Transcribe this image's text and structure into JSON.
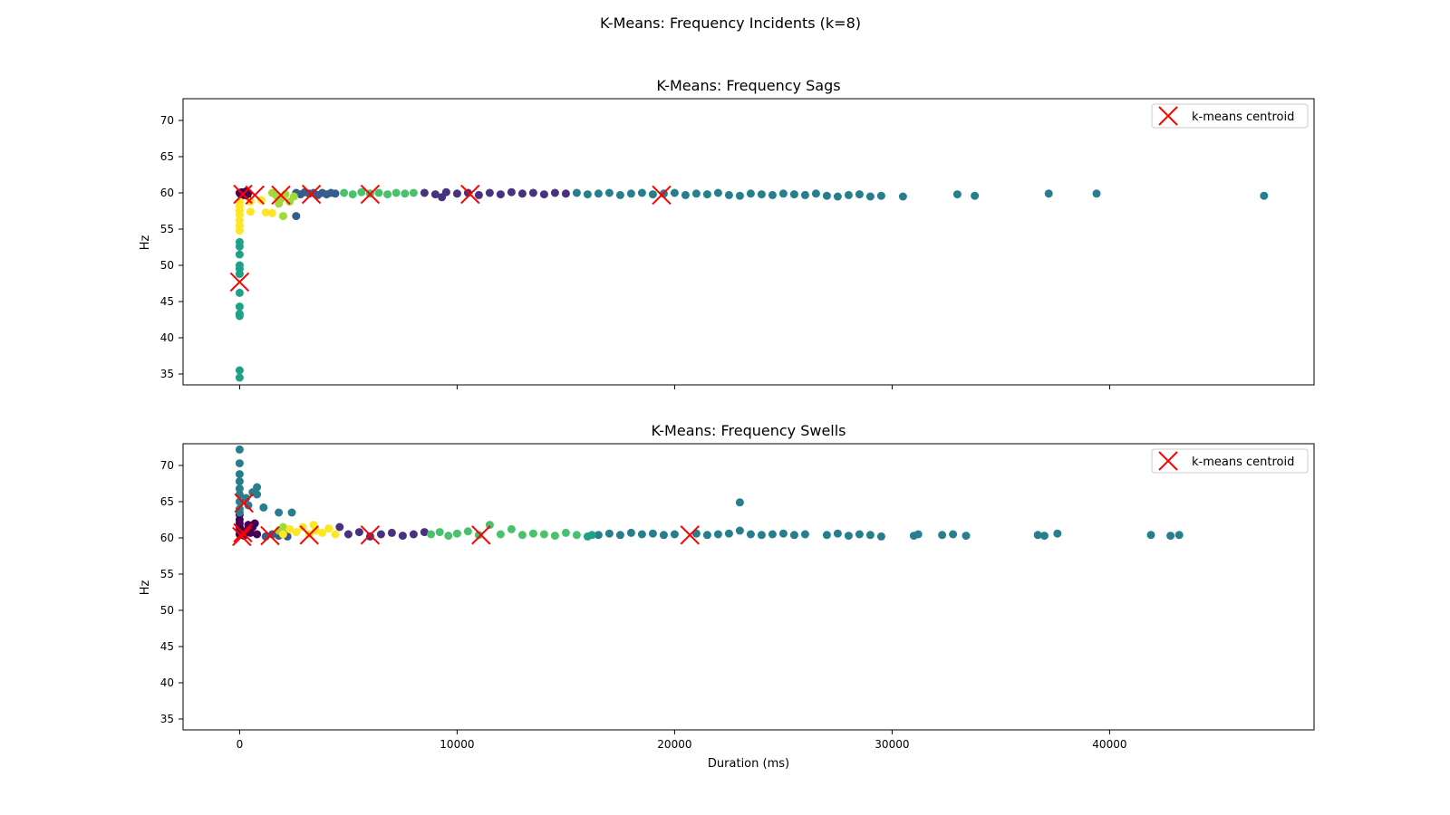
{
  "figure": {
    "suptitle": "K-Means: Frequency Incidents (k=8)"
  },
  "colors": {
    "centroid": "#ff0000",
    "palette": [
      "#440154",
      "#46327e",
      "#365c8d",
      "#277f8e",
      "#1fa187",
      "#4ac16d",
      "#a0da39",
      "#fde725"
    ]
  },
  "chart_data": [
    {
      "type": "scatter",
      "title": "K-Means: Frequency Sags",
      "xlabel": "",
      "ylabel": "Hz",
      "xlim": [
        -2600,
        49400
      ],
      "ylim": [
        33.5,
        73
      ],
      "xticks": [
        0,
        10000,
        20000,
        30000,
        40000
      ],
      "show_xtick_labels": false,
      "yticks": [
        35,
        40,
        45,
        50,
        55,
        60,
        65,
        70
      ],
      "grid": false,
      "legend": {
        "position": "top-right",
        "label": "k-means centroid"
      },
      "series": [
        {
          "cluster": 0,
          "color": "#440154",
          "points": [
            [
              0,
              60
            ],
            [
              50,
              59.8
            ],
            [
              100,
              60.1
            ],
            [
              150,
              59.7
            ],
            [
              200,
              60
            ],
            [
              250,
              59.9
            ],
            [
              300,
              60.2
            ],
            [
              350,
              59.6
            ],
            [
              400,
              60
            ]
          ]
        },
        {
          "cluster": 1,
          "color": "#46327e",
          "points": [
            [
              8500,
              60
            ],
            [
              9000,
              59.8
            ],
            [
              9500,
              60.1
            ],
            [
              10000,
              59.9
            ],
            [
              10500,
              60
            ],
            [
              11000,
              59.7
            ],
            [
              11500,
              60
            ],
            [
              12000,
              59.8
            ],
            [
              12500,
              60.1
            ],
            [
              13000,
              59.9
            ],
            [
              13500,
              60
            ],
            [
              14000,
              59.8
            ],
            [
              14500,
              60
            ],
            [
              15000,
              59.9
            ],
            [
              9300,
              59.4
            ]
          ]
        },
        {
          "cluster": 2,
          "color": "#365c8d",
          "points": [
            [
              2600,
              60
            ],
            [
              2800,
              59.8
            ],
            [
              3000,
              60.1
            ],
            [
              3200,
              59.9
            ],
            [
              3400,
              60
            ],
            [
              3600,
              59.7
            ],
            [
              3800,
              60
            ],
            [
              4000,
              59.8
            ],
            [
              4200,
              60
            ],
            [
              4400,
              59.9
            ],
            [
              2600,
              56.8
            ]
          ]
        },
        {
          "cluster": 3,
          "color": "#277f8e",
          "points": [
            [
              15500,
              60
            ],
            [
              16000,
              59.8
            ],
            [
              16500,
              59.9
            ],
            [
              17000,
              60
            ],
            [
              17500,
              59.7
            ],
            [
              18000,
              59.9
            ],
            [
              18500,
              60
            ],
            [
              19000,
              59.8
            ],
            [
              19500,
              59.9
            ],
            [
              20000,
              60
            ],
            [
              20500,
              59.7
            ],
            [
              21000,
              59.9
            ],
            [
              21500,
              59.8
            ],
            [
              22000,
              60
            ],
            [
              22500,
              59.7
            ],
            [
              23000,
              59.6
            ],
            [
              23500,
              59.9
            ],
            [
              24000,
              59.8
            ],
            [
              24500,
              59.7
            ],
            [
              25000,
              59.9
            ],
            [
              25500,
              59.8
            ],
            [
              26000,
              59.7
            ],
            [
              26500,
              59.9
            ],
            [
              27000,
              59.6
            ],
            [
              27500,
              59.5
            ],
            [
              28000,
              59.7
            ],
            [
              28500,
              59.8
            ],
            [
              29000,
              59.5
            ],
            [
              29500,
              59.6
            ],
            [
              30500,
              59.5
            ],
            [
              33000,
              59.8
            ],
            [
              33800,
              59.6
            ],
            [
              37200,
              59.9
            ],
            [
              39400,
              59.9
            ],
            [
              47100,
              59.6
            ]
          ]
        },
        {
          "cluster": 4,
          "color": "#1fa187",
          "points": [
            [
              0,
              53.2
            ],
            [
              0,
              52.6
            ],
            [
              0,
              51.5
            ],
            [
              0,
              50
            ],
            [
              0,
              49.5
            ],
            [
              0,
              48.8
            ],
            [
              0,
              46.2
            ],
            [
              0,
              44.3
            ],
            [
              0,
              43.3
            ],
            [
              0,
              43
            ],
            [
              0,
              35.5
            ],
            [
              0,
              34.5
            ]
          ]
        },
        {
          "cluster": 5,
          "color": "#4ac16d",
          "points": [
            [
              4800,
              60
            ],
            [
              5200,
              59.8
            ],
            [
              5600,
              60.1
            ],
            [
              6000,
              59.9
            ],
            [
              6400,
              60
            ],
            [
              6800,
              59.8
            ],
            [
              7200,
              60
            ],
            [
              7600,
              59.9
            ],
            [
              8000,
              60
            ]
          ]
        },
        {
          "cluster": 6,
          "color": "#a0da39",
          "points": [
            [
              1500,
              60
            ],
            [
              1700,
              59.6
            ],
            [
              1900,
              59.2
            ],
            [
              2100,
              59.8
            ],
            [
              2300,
              58.8
            ],
            [
              2500,
              59.5
            ],
            [
              1800,
              58.5
            ],
            [
              2000,
              56.8
            ]
          ]
        },
        {
          "cluster": 7,
          "color": "#fde725",
          "points": [
            [
              0,
              58.8
            ],
            [
              0,
              58.2
            ],
            [
              0,
              57.6
            ],
            [
              0,
              57
            ],
            [
              0,
              56.2
            ],
            [
              0,
              55.5
            ],
            [
              0,
              54.8
            ],
            [
              500,
              57.4
            ],
            [
              500,
              58.8
            ],
            [
              1200,
              57.3
            ],
            [
              1500,
              57.2
            ],
            [
              1000,
              59
            ]
          ]
        }
      ],
      "centroids": [
        [
          150,
          59.8
        ],
        [
          700,
          59.7
        ],
        [
          1900,
          59.7
        ],
        [
          3300,
          59.8
        ],
        [
          6000,
          59.8
        ],
        [
          10600,
          59.8
        ],
        [
          19400,
          59.7
        ],
        [
          0,
          47.7
        ]
      ]
    },
    {
      "type": "scatter",
      "title": "K-Means: Frequency Swells",
      "xlabel": "Duration (ms)",
      "ylabel": "Hz",
      "xlim": [
        -2600,
        49400
      ],
      "ylim": [
        33.5,
        73
      ],
      "xticks": [
        0,
        10000,
        20000,
        30000,
        40000
      ],
      "show_xtick_labels": true,
      "yticks": [
        35,
        40,
        45,
        50,
        55,
        60,
        65,
        70
      ],
      "grid": false,
      "legend": {
        "position": "top-right",
        "label": "k-means centroid"
      },
      "series": [
        {
          "cluster": 0,
          "color": "#440154",
          "points": [
            [
              0,
              60.5
            ],
            [
              0,
              61
            ],
            [
              0,
              61.5
            ],
            [
              0,
              62
            ],
            [
              0,
              62.5
            ],
            [
              0,
              63.2
            ],
            [
              200,
              60.3
            ],
            [
              300,
              61
            ],
            [
              400,
              61.8
            ],
            [
              500,
              60.7
            ],
            [
              600,
              61.5
            ],
            [
              700,
              62
            ],
            [
              800,
              60.5
            ]
          ]
        },
        {
          "cluster": 1,
          "color": "#46327e",
          "points": [
            [
              4600,
              61.5
            ],
            [
              5000,
              60.5
            ],
            [
              5500,
              60.8
            ],
            [
              6000,
              60.2
            ],
            [
              6500,
              60.5
            ],
            [
              7000,
              60.7
            ],
            [
              7500,
              60.3
            ],
            [
              8000,
              60.5
            ],
            [
              8500,
              60.8
            ]
          ]
        },
        {
          "cluster": 2,
          "color": "#365c8d",
          "points": [
            [
              1200,
              60.2
            ],
            [
              1500,
              60.5
            ],
            [
              1800,
              60.3
            ],
            [
              2000,
              60.6
            ],
            [
              2200,
              60.2
            ]
          ]
        },
        {
          "cluster": 3,
          "color": "#277f8e",
          "points": [
            [
              0,
              72.2
            ],
            [
              0,
              70.3
            ],
            [
              0,
              68.8
            ],
            [
              0,
              67.8
            ],
            [
              0,
              66.8
            ],
            [
              0,
              66
            ],
            [
              0,
              65
            ],
            [
              0,
              64
            ],
            [
              0,
              63.5
            ],
            [
              300,
              65.5
            ],
            [
              400,
              64.5
            ],
            [
              600,
              66.3
            ],
            [
              800,
              67
            ],
            [
              800,
              66
            ],
            [
              1100,
              64.2
            ],
            [
              1800,
              63.5
            ],
            [
              2400,
              63.5
            ],
            [
              16500,
              60.4
            ],
            [
              17000,
              60.6
            ],
            [
              17500,
              60.4
            ],
            [
              18000,
              60.7
            ],
            [
              18500,
              60.5
            ],
            [
              19000,
              60.6
            ],
            [
              19500,
              60.4
            ],
            [
              20000,
              60.5
            ],
            [
              21000,
              60.6
            ],
            [
              21500,
              60.4
            ],
            [
              22000,
              60.5
            ],
            [
              22500,
              60.6
            ],
            [
              23000,
              61
            ],
            [
              23500,
              60.5
            ],
            [
              24000,
              60.4
            ],
            [
              24500,
              60.5
            ],
            [
              25000,
              60.6
            ],
            [
              25500,
              60.4
            ],
            [
              26000,
              60.5
            ],
            [
              27000,
              60.4
            ],
            [
              27500,
              60.6
            ],
            [
              28000,
              60.3
            ],
            [
              28500,
              60.5
            ],
            [
              29000,
              60.4
            ],
            [
              29500,
              60.2
            ],
            [
              31000,
              60.3
            ],
            [
              31200,
              60.5
            ],
            [
              32300,
              60.4
            ],
            [
              32800,
              60.5
            ],
            [
              33400,
              60.3
            ],
            [
              36700,
              60.4
            ],
            [
              37000,
              60.3
            ],
            [
              37600,
              60.6
            ],
            [
              41900,
              60.4
            ],
            [
              42800,
              60.3
            ],
            [
              43200,
              60.4
            ],
            [
              23000,
              64.9
            ]
          ]
        },
        {
          "cluster": 4,
          "color": "#1fa187",
          "points": [
            [
              16000,
              60.2
            ],
            [
              16200,
              60.4
            ]
          ]
        },
        {
          "cluster": 5,
          "color": "#4ac16d",
          "points": [
            [
              8800,
              60.5
            ],
            [
              9200,
              60.8
            ],
            [
              9600,
              60.3
            ],
            [
              10000,
              60.6
            ],
            [
              10500,
              60.9
            ],
            [
              11000,
              60.4
            ],
            [
              11500,
              61.8
            ],
            [
              12000,
              60.5
            ],
            [
              12500,
              61.2
            ],
            [
              13000,
              60.4
            ],
            [
              13500,
              60.6
            ],
            [
              14000,
              60.5
            ],
            [
              14500,
              60.3
            ],
            [
              15000,
              60.7
            ],
            [
              15500,
              60.4
            ]
          ]
        },
        {
          "cluster": 6,
          "color": "#a0da39",
          "points": [
            [
              1800,
              61
            ],
            [
              2000,
              61.5
            ]
          ]
        },
        {
          "cluster": 7,
          "color": "#fde725",
          "points": [
            [
              2000,
              60.5
            ],
            [
              2300,
              61.2
            ],
            [
              2600,
              60.8
            ],
            [
              2900,
              61.5
            ],
            [
              3200,
              60.5
            ],
            [
              3500,
              61
            ],
            [
              3800,
              60.7
            ],
            [
              4100,
              61.3
            ],
            [
              4400,
              60.5
            ],
            [
              3400,
              61.8
            ]
          ]
        }
      ],
      "centroids": [
        [
          100,
          60.2
        ],
        [
          150,
          60.7
        ],
        [
          200,
          64.8
        ],
        [
          1400,
          60.3
        ],
        [
          3200,
          60.4
        ],
        [
          6000,
          60.4
        ],
        [
          11100,
          60.4
        ],
        [
          20700,
          60.4
        ]
      ]
    }
  ]
}
